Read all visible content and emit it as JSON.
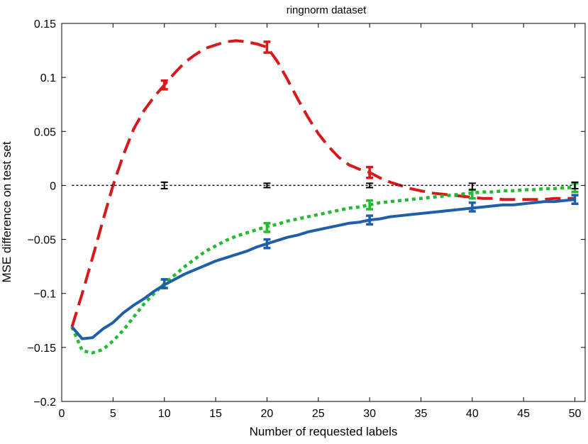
{
  "chart_data": {
    "type": "line",
    "title": "ringnorm dataset",
    "xlabel": "Number of requested labels",
    "ylabel": "MSE difference on test set",
    "xlim": [
      0,
      51
    ],
    "ylim": [
      -0.2,
      0.15
    ],
    "xticks": [
      0,
      5,
      10,
      15,
      20,
      25,
      30,
      35,
      40,
      45,
      50
    ],
    "xtick_labels": [
      "0",
      "5",
      "10",
      "15",
      "20",
      "25",
      "30",
      "35",
      "40",
      "45",
      "50"
    ],
    "yticks": [
      -0.2,
      -0.15,
      -0.1,
      -0.05,
      0,
      0.05,
      0.1,
      0.15
    ],
    "ytick_labels": [
      "−0.2",
      "−0.15",
      "−0.1",
      "−0.05",
      "0",
      "0.05",
      "0.1",
      "0.15"
    ],
    "grid": false,
    "series": [
      {
        "color": "#d7191c",
        "style": "dashed",
        "x": [
          1,
          2,
          3,
          4,
          5,
          6,
          7,
          8,
          9,
          10,
          11,
          12,
          13,
          14,
          15,
          16,
          17,
          18,
          19,
          20,
          21,
          22,
          23,
          24,
          25,
          26,
          27,
          28,
          29,
          30,
          31,
          32,
          33,
          34,
          35,
          36,
          37,
          38,
          39,
          40,
          41,
          42,
          43,
          44,
          45,
          46,
          47,
          48,
          49,
          50
        ],
        "y": [
          -0.131,
          -0.1,
          -0.067,
          -0.033,
          0.0,
          0.028,
          0.052,
          0.069,
          0.082,
          0.093,
          0.104,
          0.114,
          0.121,
          0.127,
          0.13,
          0.133,
          0.134,
          0.133,
          0.131,
          0.128,
          0.115,
          0.098,
          0.08,
          0.063,
          0.048,
          0.036,
          0.026,
          0.019,
          0.015,
          0.012,
          0.007,
          0.003,
          0.0,
          -0.003,
          -0.005,
          -0.007,
          -0.008,
          -0.009,
          -0.01,
          -0.011,
          -0.012,
          -0.012,
          -0.013,
          -0.013,
          -0.013,
          -0.013,
          -0.013,
          -0.012,
          -0.012,
          -0.012
        ],
        "error_x": [
          10,
          20,
          30
        ],
        "error_y": [
          0.093,
          0.128,
          0.012
        ],
        "error_err": [
          0.004,
          0.005,
          0.005
        ]
      },
      {
        "color": "#22bb33",
        "style": "dotted",
        "x": [
          1,
          2,
          3,
          4,
          5,
          6,
          7,
          8,
          9,
          10,
          11,
          12,
          13,
          14,
          15,
          16,
          17,
          18,
          19,
          20,
          21,
          22,
          23,
          24,
          25,
          26,
          27,
          28,
          29,
          30,
          31,
          32,
          33,
          34,
          35,
          36,
          37,
          38,
          39,
          40,
          41,
          42,
          43,
          44,
          45,
          46,
          47,
          48,
          49,
          50
        ],
        "y": [
          -0.131,
          -0.153,
          -0.155,
          -0.152,
          -0.144,
          -0.134,
          -0.122,
          -0.11,
          -0.1,
          -0.091,
          -0.083,
          -0.075,
          -0.068,
          -0.061,
          -0.056,
          -0.051,
          -0.047,
          -0.044,
          -0.041,
          -0.038,
          -0.036,
          -0.033,
          -0.031,
          -0.029,
          -0.027,
          -0.025,
          -0.023,
          -0.021,
          -0.02,
          -0.018,
          -0.016,
          -0.015,
          -0.014,
          -0.013,
          -0.012,
          -0.011,
          -0.01,
          -0.009,
          -0.008,
          -0.007,
          -0.006,
          -0.006,
          -0.005,
          -0.005,
          -0.004,
          -0.004,
          -0.003,
          -0.003,
          -0.002,
          -0.002
        ],
        "error_x": [
          10,
          20,
          30,
          40,
          50
        ],
        "error_y": [
          -0.091,
          -0.039,
          -0.018,
          -0.008,
          -0.002
        ],
        "error_err": [
          0.004,
          0.004,
          0.004,
          0.004,
          0.004
        ]
      },
      {
        "color": "#1f5fa8",
        "style": "solid",
        "x": [
          1,
          2,
          3,
          4,
          5,
          6,
          7,
          8,
          9,
          10,
          11,
          12,
          13,
          14,
          15,
          16,
          17,
          18,
          19,
          20,
          21,
          22,
          23,
          24,
          25,
          26,
          27,
          28,
          29,
          30,
          31,
          32,
          33,
          34,
          35,
          36,
          37,
          38,
          39,
          40,
          41,
          42,
          43,
          44,
          45,
          46,
          47,
          48,
          49,
          50
        ],
        "y": [
          -0.131,
          -0.142,
          -0.141,
          -0.133,
          -0.127,
          -0.118,
          -0.111,
          -0.105,
          -0.098,
          -0.092,
          -0.087,
          -0.082,
          -0.078,
          -0.074,
          -0.07,
          -0.067,
          -0.064,
          -0.061,
          -0.057,
          -0.054,
          -0.051,
          -0.048,
          -0.046,
          -0.043,
          -0.041,
          -0.039,
          -0.037,
          -0.035,
          -0.034,
          -0.032,
          -0.031,
          -0.029,
          -0.028,
          -0.027,
          -0.026,
          -0.025,
          -0.024,
          -0.023,
          -0.022,
          -0.021,
          -0.02,
          -0.019,
          -0.018,
          -0.018,
          -0.017,
          -0.016,
          -0.015,
          -0.015,
          -0.014,
          -0.013
        ],
        "error_x": [
          10,
          20,
          30,
          40,
          50
        ],
        "error_y": [
          -0.091,
          -0.054,
          -0.032,
          -0.02,
          -0.013
        ],
        "error_err": [
          0.004,
          0.004,
          0.004,
          0.004,
          0.004
        ]
      },
      {
        "color": "#000000",
        "style": "dotted-thin",
        "x": [
          1,
          50
        ],
        "y": [
          0,
          0
        ],
        "error_x": [
          10,
          20,
          30,
          40,
          50
        ],
        "error_y": [
          0.0,
          0.0,
          0.0,
          -0.001,
          0.0
        ],
        "error_err": [
          0.003,
          0.002,
          0.002,
          0.003,
          0.003
        ]
      }
    ]
  }
}
